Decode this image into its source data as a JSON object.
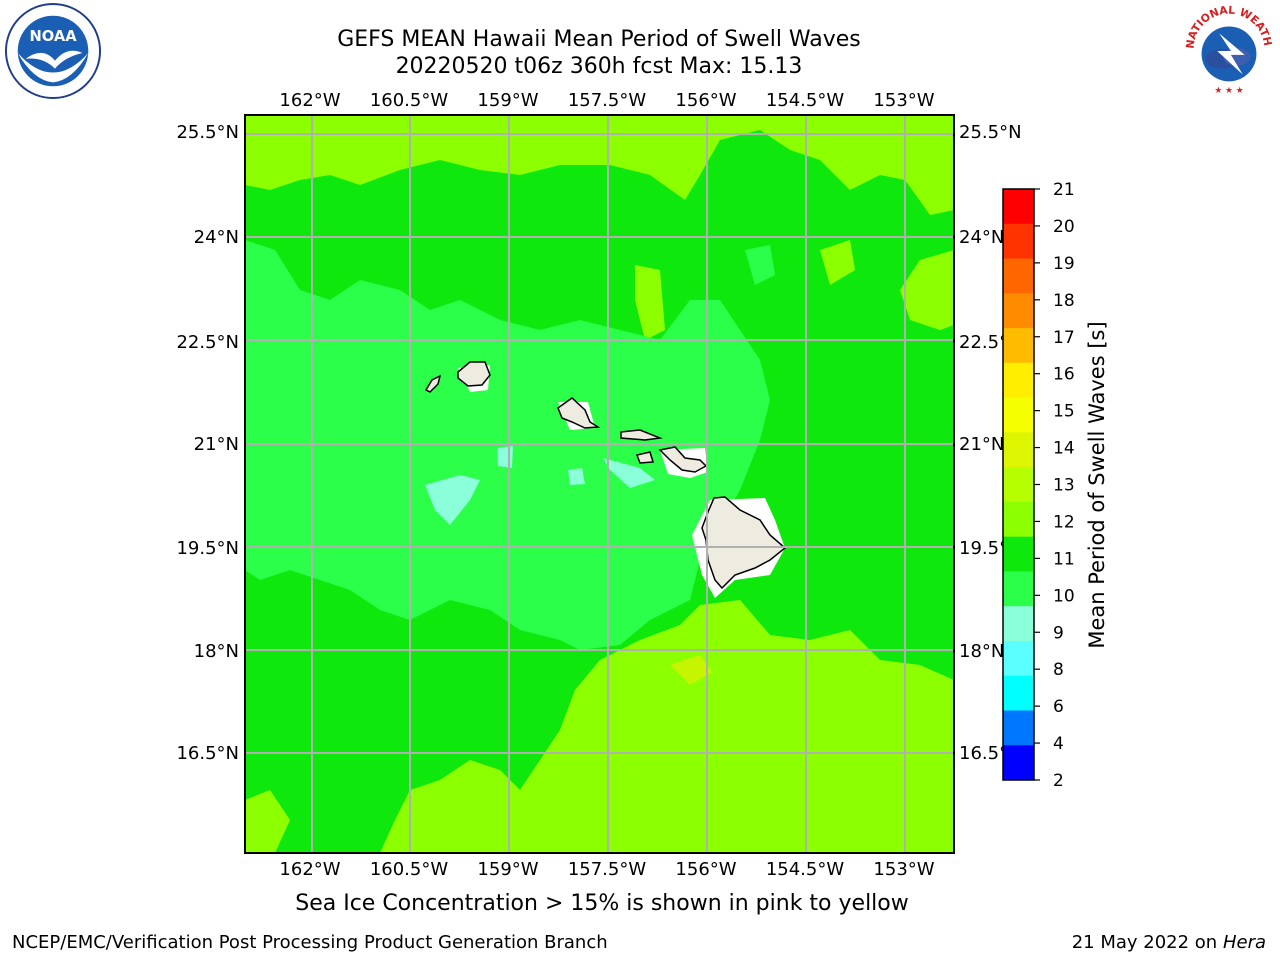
{
  "header": {
    "title_line1": "GEFS MEAN Hawaii Mean Period of Swell Waves",
    "title_line2": "20220520 t06z 360h fcst   Max: 15.13"
  },
  "map": {
    "lon_labels": [
      "162°W",
      "160.5°W",
      "159°W",
      "157.5°W",
      "156°W",
      "154.5°W",
      "153°W"
    ],
    "lat_labels": [
      "25.5°N",
      "24°N",
      "22.5°N",
      "21°N",
      "19.5°N",
      "18°N",
      "16.5°N"
    ],
    "field_colors": {
      "period_10_11": "#2cff4a",
      "period_11_12": "#0fe80c",
      "period_12_13": "#8cff00",
      "period_13_14": "#c5f500",
      "period_9_10": "#8affd9",
      "land": "#eeece0",
      "gridline": "#b0b0b0"
    }
  },
  "colorbar": {
    "title": "Mean Period of Swell Waves [s]",
    "ticks": [
      "21",
      "20",
      "19",
      "18",
      "17",
      "16",
      "15",
      "14",
      "13",
      "12",
      "11",
      "10",
      "9",
      "8",
      "6",
      "4",
      "2"
    ],
    "colors": [
      "#ff0000",
      "#ff3300",
      "#ff6600",
      "#ff8c00",
      "#ffbb00",
      "#ffee00",
      "#f5ff00",
      "#ddf500",
      "#b5ff00",
      "#8cff00",
      "#0fe80c",
      "#2cff4a",
      "#8affd9",
      "#5cffff",
      "#00ffff",
      "#0077ff",
      "#0000ff"
    ]
  },
  "note": "Sea Ice Concentration > 15% is shown in pink to yellow",
  "footer": {
    "left": "NCEP/EMC/Verification Post Processing Product Generation Branch",
    "right_prefix": "21 May 2022 on",
    "right_system": "Hera"
  },
  "logos": {
    "noaa_text": "NOAA",
    "nws_text": "NATIONAL WEATHER SERVICE"
  }
}
